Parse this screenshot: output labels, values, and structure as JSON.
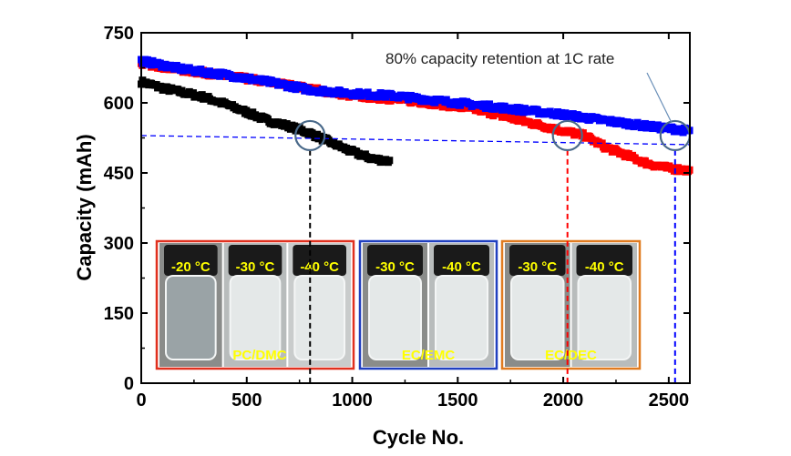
{
  "chart_data": {
    "type": "scatter",
    "title": "",
    "xlabel": "Cycle No.",
    "ylabel": "Capacity (mAh)",
    "xlim": [
      0,
      2600
    ],
    "ylim": [
      0,
      750
    ],
    "xticks": [
      0,
      500,
      1000,
      1500,
      2000,
      2500
    ],
    "yticks": [
      0,
      150,
      300,
      450,
      600,
      750
    ],
    "series": [
      {
        "name": "black",
        "color": "#000000",
        "x": [
          0,
          100,
          200,
          300,
          400,
          500,
          600,
          700,
          800,
          900,
          1000,
          1100,
          1180
        ],
        "y": [
          645,
          632,
          622,
          612,
          597,
          580,
          562,
          550,
          535,
          515,
          495,
          480,
          475
        ]
      },
      {
        "name": "red",
        "color": "#ff0000",
        "x": [
          0,
          200,
          400,
          600,
          800,
          1000,
          1200,
          1400,
          1600,
          1800,
          2000,
          2100,
          2200,
          2300,
          2400,
          2500,
          2600
        ],
        "y": [
          685,
          670,
          658,
          645,
          630,
          615,
          608,
          598,
          585,
          562,
          540,
          530,
          505,
          488,
          470,
          460,
          455
        ]
      },
      {
        "name": "blue",
        "color": "#0000ff",
        "x": [
          0,
          200,
          400,
          600,
          800,
          1000,
          1200,
          1400,
          1600,
          1800,
          2000,
          2200,
          2400,
          2600
        ],
        "y": [
          690,
          672,
          660,
          645,
          628,
          620,
          615,
          605,
          595,
          585,
          575,
          562,
          550,
          540
        ]
      }
    ],
    "retention_line": {
      "y": 530,
      "color": "#0000ff"
    },
    "markers": [
      {
        "x": 800,
        "y": 530,
        "color": "#000000"
      },
      {
        "x": 2020,
        "y": 530,
        "color": "#ff0000"
      },
      {
        "x": 2530,
        "y": 530,
        "color": "#0000ff"
      }
    ],
    "annotation": "80% capacity retention at 1C rate",
    "insets": [
      {
        "solvent": "PC/DMC",
        "border": "#e0301e",
        "temps": [
          "-20 °C",
          "-30 °C",
          "-40 °C"
        ]
      },
      {
        "solvent": "EC/EMC",
        "border": "#1f3fbf",
        "temps": [
          "-30 °C",
          "-40 °C"
        ]
      },
      {
        "solvent": "EC/DEC",
        "border": "#e07b20",
        "temps": [
          "-30 °C",
          "-40 °C"
        ]
      }
    ]
  }
}
